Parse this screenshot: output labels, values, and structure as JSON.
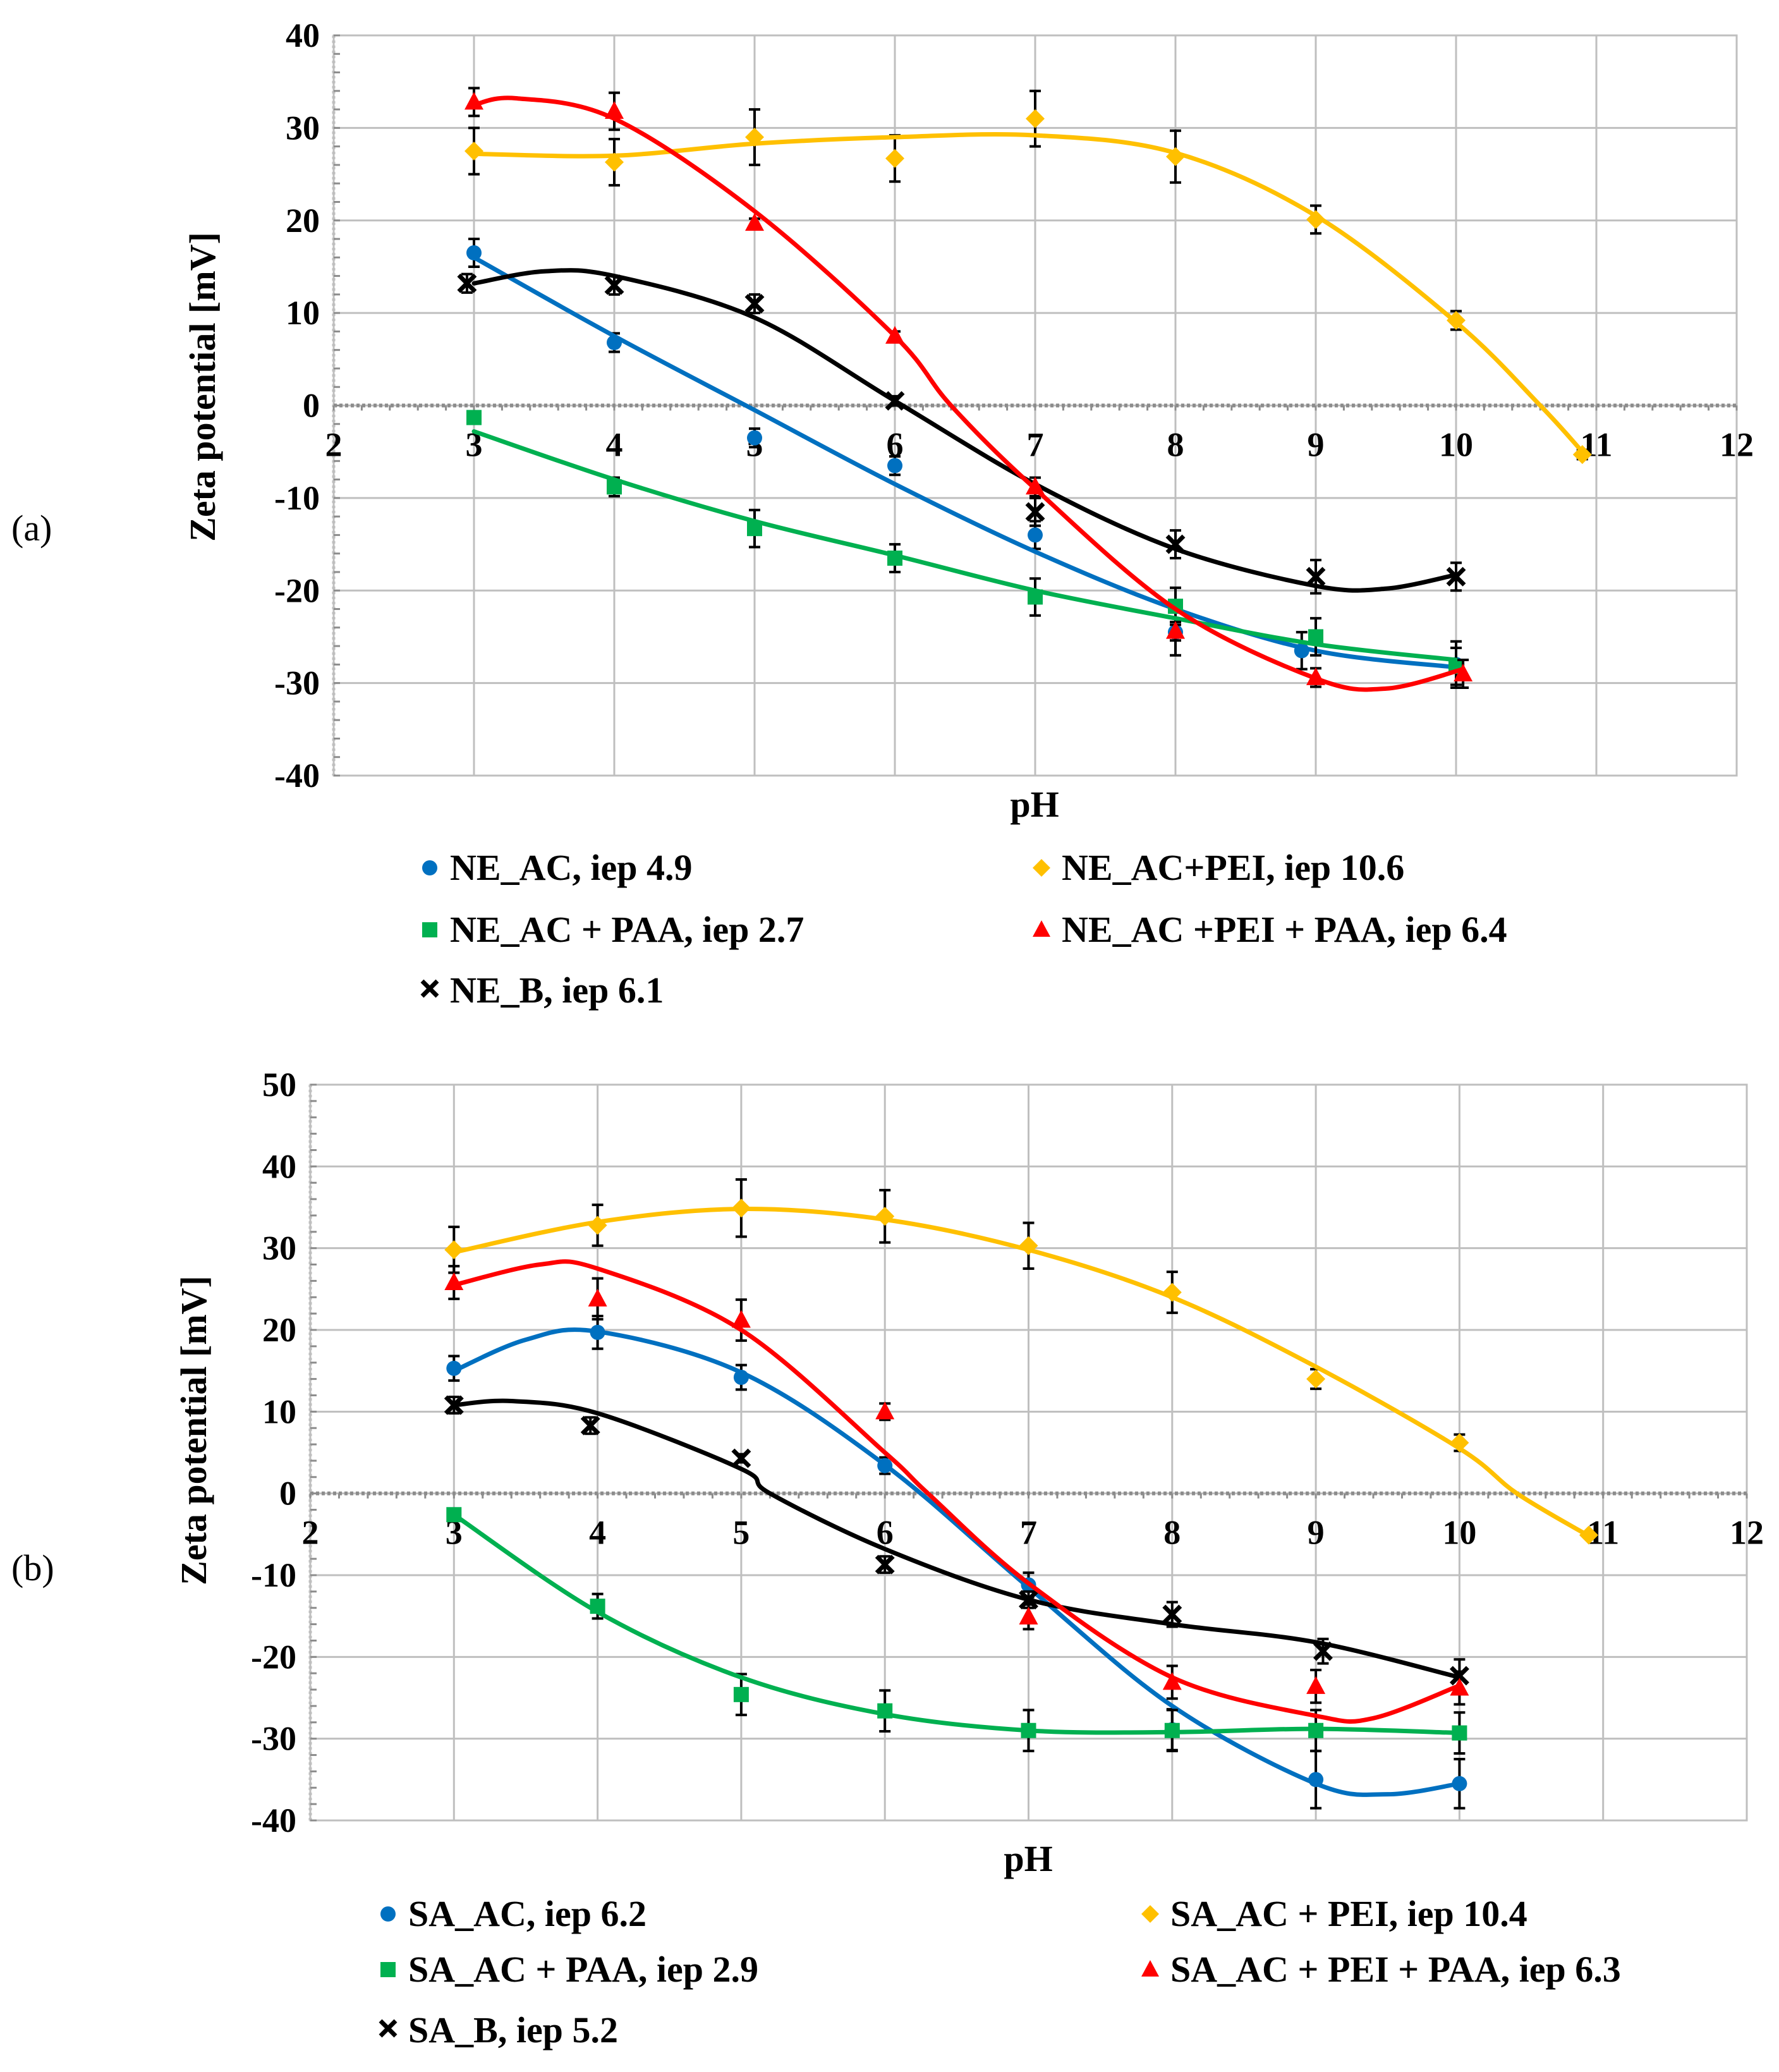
{
  "chart_data": [
    {
      "panel_label": "(a)",
      "type": "scatter",
      "xlabel": "pH",
      "ylabel": "Zeta potential [mV]",
      "xlim": [
        2,
        12
      ],
      "ylim": [
        -40,
        40
      ],
      "xticks": [
        2,
        3,
        4,
        5,
        6,
        7,
        8,
        9,
        10,
        11,
        12
      ],
      "yticks": [
        -40,
        -30,
        -20,
        -10,
        0,
        10,
        20,
        30,
        40
      ],
      "grid": true,
      "legend_position": "bottom",
      "series": [
        {
          "name": "NE_AC, iep 4.9",
          "color": "#0070C0",
          "marker": "circle",
          "x": [
            3,
            4,
            5,
            6,
            7,
            8,
            8.9,
            10
          ],
          "y": [
            16.5,
            6.8,
            -3.5,
            -6.5,
            -14,
            -24.5,
            -26.5,
            -28
          ],
          "err": [
            1.5,
            1,
            1,
            1,
            1.5,
            2.5,
            2,
            2.5
          ],
          "fit": [
            [
              3,
              16
            ],
            [
              4,
              7.5
            ],
            [
              5,
              -0.5
            ],
            [
              6,
              -8.5
            ],
            [
              7,
              -15.8
            ],
            [
              8,
              -22
            ],
            [
              9,
              -26.5
            ],
            [
              10,
              -28.3
            ]
          ]
        },
        {
          "name": "NE_AC + PAA, iep 2.7",
          "color": "#00B050",
          "marker": "square",
          "x": [
            3,
            4,
            5,
            6,
            7,
            8,
            9,
            10
          ],
          "y": [
            -1.3,
            -8.8,
            -13.3,
            -16.5,
            -20.7,
            -21.7,
            -25,
            -28.2
          ],
          "err": [
            0.5,
            1,
            2,
            1.5,
            2,
            2,
            2,
            2
          ],
          "fit": [
            [
              3,
              -2.8
            ],
            [
              4,
              -8
            ],
            [
              5,
              -12.5
            ],
            [
              6,
              -16.2
            ],
            [
              7,
              -20
            ],
            [
              8,
              -23
            ],
            [
              9,
              -25.8
            ],
            [
              10,
              -27.5
            ]
          ]
        },
        {
          "name": "NE_B, iep 6.1",
          "color": "#000000",
          "marker": "x",
          "x": [
            2.95,
            4,
            5,
            6,
            7,
            8,
            9,
            10
          ],
          "y": [
            13.2,
            13,
            11,
            0.5,
            -11.5,
            -15,
            -18.5,
            -18.5
          ],
          "err": [
            1,
            1,
            1,
            0.5,
            1.5,
            1.5,
            1.8,
            1.5
          ],
          "fit": [
            [
              3,
              13.2
            ],
            [
              3.5,
              14.5
            ],
            [
              4,
              14
            ],
            [
              5,
              9.5
            ],
            [
              6,
              0.5
            ],
            [
              7,
              -8.5
            ],
            [
              8,
              -15.5
            ],
            [
              9,
              -19.5
            ],
            [
              9.5,
              -19.8
            ],
            [
              10,
              -18.3
            ]
          ]
        },
        {
          "name": "NE_AC+PEI, iep 10.6",
          "color": "#FFC000",
          "marker": "diamond",
          "x": [
            3,
            4,
            5,
            6,
            7,
            8,
            9,
            10,
            10.9
          ],
          "y": [
            27.5,
            26.3,
            29,
            26.7,
            31,
            26.9,
            20.1,
            9.2,
            -5.3
          ],
          "err": [
            2.5,
            2.5,
            3,
            2.5,
            3,
            2.8,
            1.5,
            1,
            0.5
          ],
          "fit": [
            [
              3,
              27.2
            ],
            [
              4,
              27
            ],
            [
              5,
              28.3
            ],
            [
              6,
              29
            ],
            [
              7,
              29.2
            ],
            [
              8,
              27.3
            ],
            [
              9,
              20.5
            ],
            [
              10,
              9
            ],
            [
              10.6,
              0
            ],
            [
              10.9,
              -5
            ]
          ]
        },
        {
          "name": "NE_AC +PEI + PAA, iep 6.4",
          "color": "#FF0000",
          "marker": "triangle",
          "x": [
            3,
            4,
            5,
            6,
            7,
            8,
            9,
            10.05
          ],
          "y": [
            32.8,
            31.8,
            19.7,
            7.5,
            -8.8,
            -24.4,
            -29.4,
            -29
          ],
          "err": [
            1.5,
            2,
            0.5,
            0.5,
            1,
            1,
            1,
            1.5
          ],
          "fit": [
            [
              3,
              32.5
            ],
            [
              3.3,
              33.2
            ],
            [
              4,
              31
            ],
            [
              5,
              21
            ],
            [
              6,
              7.5
            ],
            [
              6.4,
              0
            ],
            [
              7,
              -9
            ],
            [
              8,
              -22
            ],
            [
              9,
              -29.5
            ],
            [
              9.5,
              -30.6
            ],
            [
              10.05,
              -28.5
            ]
          ]
        }
      ]
    },
    {
      "panel_label": "(b)",
      "type": "scatter",
      "xlabel": "pH",
      "ylabel": "Zeta potential [mV]",
      "xlim": [
        2,
        12
      ],
      "ylim": [
        -40,
        50
      ],
      "xticks": [
        2,
        3,
        4,
        5,
        6,
        7,
        8,
        9,
        10,
        11,
        12
      ],
      "yticks": [
        -40,
        -30,
        -20,
        -10,
        0,
        10,
        20,
        30,
        40,
        50
      ],
      "grid": true,
      "legend_position": "bottom",
      "series": [
        {
          "name": "SA_AC, iep 6.2",
          "color": "#0070C0",
          "marker": "circle",
          "x": [
            3,
            4,
            5,
            6,
            7,
            8,
            9,
            10
          ],
          "y": [
            15.3,
            19.7,
            14.2,
            3.4,
            -11.2,
            -28.9,
            -35,
            -35.5
          ],
          "err": [
            1.5,
            2,
            1.5,
            1,
            1.5,
            2.5,
            3.5,
            3
          ],
          "fit": [
            [
              3,
              15
            ],
            [
              3.5,
              18.8
            ],
            [
              4,
              19.8
            ],
            [
              5,
              14.8
            ],
            [
              6,
              3.5
            ],
            [
              7,
              -11.5
            ],
            [
              8,
              -26
            ],
            [
              9,
              -35.5
            ],
            [
              9.5,
              -36.8
            ],
            [
              10,
              -35.5
            ]
          ]
        },
        {
          "name": "SA_AC + PAA, iep 2.9",
          "color": "#00B050",
          "marker": "square",
          "x": [
            3,
            4,
            5,
            6,
            7,
            8,
            9,
            10
          ],
          "y": [
            -2.6,
            -13.8,
            -24.6,
            -26.6,
            -29,
            -29,
            -29,
            -29.3
          ],
          "err": [
            0.5,
            1.5,
            2.5,
            2.5,
            2.5,
            2.5,
            2.5,
            2.5
          ],
          "fit": [
            [
              3,
              -2.6
            ],
            [
              4,
              -14.5
            ],
            [
              5,
              -22.5
            ],
            [
              6,
              -27
            ],
            [
              7,
              -29
            ],
            [
              8,
              -29.2
            ],
            [
              9,
              -28.8
            ],
            [
              10,
              -29.3
            ]
          ]
        },
        {
          "name": "SA_B, iep 5.2",
          "color": "#000000",
          "marker": "x",
          "x": [
            3,
            3.95,
            5,
            6,
            7,
            8,
            9.05,
            10
          ],
          "y": [
            10.8,
            8.3,
            4.3,
            -8.7,
            -13,
            -14.8,
            -19.3,
            -22.3
          ],
          "err": [
            1,
            1,
            0.5,
            1,
            1,
            1.5,
            1.5,
            2
          ],
          "fit": [
            [
              3,
              10.8
            ],
            [
              3.4,
              11.3
            ],
            [
              4,
              9.8
            ],
            [
              5,
              3
            ],
            [
              5.2,
              0
            ],
            [
              6,
              -6.8
            ],
            [
              7,
              -13
            ],
            [
              8,
              -16
            ],
            [
              9,
              -18.2
            ],
            [
              10,
              -22.5
            ]
          ]
        },
        {
          "name": "SA_AC + PEI, iep 10.4",
          "color": "#FFC000",
          "marker": "diamond",
          "x": [
            3,
            4,
            5,
            6,
            7,
            8,
            9,
            10,
            10.9
          ],
          "y": [
            29.8,
            32.8,
            34.9,
            33.9,
            30.3,
            24.6,
            14,
            6.2,
            -5.1
          ],
          "err": [
            2.8,
            2.5,
            3.5,
            3.2,
            2.8,
            2.5,
            1.2,
            1,
            0.3
          ],
          "fit": [
            [
              3,
              29.5
            ],
            [
              4,
              33.2
            ],
            [
              5,
              34.8
            ],
            [
              6,
              33.5
            ],
            [
              7,
              29.8
            ],
            [
              8,
              24
            ],
            [
              9,
              15.5
            ],
            [
              10,
              5.5
            ],
            [
              10.4,
              0
            ],
            [
              10.9,
              -5.2
            ]
          ]
        },
        {
          "name": "SA_AC + PEI + PAA, iep 6.3",
          "color": "#FF0000",
          "marker": "triangle",
          "x": [
            3,
            4,
            5,
            6,
            7,
            8,
            9,
            10
          ],
          "y": [
            25.8,
            23.8,
            21.2,
            10,
            -15.1,
            -23.1,
            -23.6,
            -23.8
          ],
          "err": [
            2,
            2.5,
            2.5,
            1,
            1.5,
            2,
            2,
            2
          ],
          "fit": [
            [
              3,
              25.5
            ],
            [
              3.6,
              28
            ],
            [
              4,
              27.5
            ],
            [
              5,
              20
            ],
            [
              6,
              5
            ],
            [
              6.3,
              0
            ],
            [
              7,
              -11
            ],
            [
              8,
              -22.5
            ],
            [
              9,
              -27.2
            ],
            [
              9.4,
              -27.5
            ],
            [
              10,
              -23.5
            ]
          ]
        }
      ]
    }
  ]
}
